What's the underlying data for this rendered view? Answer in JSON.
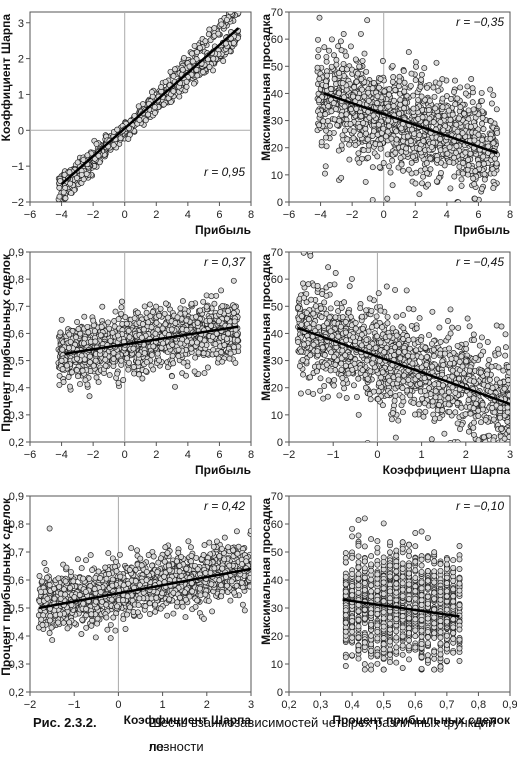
{
  "caption": {
    "label": "Рис. 2.3.2.",
    "text": "Шесть взаимозависимостей четырех различных функций по-",
    "text_cont": "лезности"
  },
  "chart_data": [
    {
      "type": "scatter",
      "id": "p1",
      "xlabel": "Прибыль",
      "ylabel": "Коэффициент Шарпа",
      "xlim": [
        -6,
        8
      ],
      "ylim": [
        -2,
        3.3
      ],
      "xticks": [
        -6,
        -4,
        -2,
        0,
        2,
        4,
        6,
        8
      ],
      "yticks": [
        -2,
        -1,
        0,
        1,
        2,
        3
      ],
      "xtick_labels": [
        "−6",
        "−4",
        "−2",
        "0",
        "2",
        "4",
        "6",
        "8"
      ],
      "ytick_labels": [
        "−2",
        "−1",
        "0",
        "1",
        "2",
        "3"
      ],
      "annotation": "r = 0,95",
      "trend": [
        [
          -4,
          -1.5
        ],
        [
          7.2,
          2.85
        ]
      ],
      "cloud": {
        "shape": "band",
        "x_range": [
          -4.2,
          7.2
        ],
        "slope": 0.4,
        "intercept": 0.0,
        "spread": 0.28,
        "count": 900
      }
    },
    {
      "type": "scatter",
      "id": "p2",
      "xlabel": "Прибыль",
      "ylabel": "Максимальная просадка",
      "xlim": [
        -6,
        8
      ],
      "ylim": [
        0,
        70
      ],
      "xticks": [
        -6,
        -4,
        -2,
        0,
        2,
        4,
        6,
        8
      ],
      "yticks": [
        0,
        10,
        20,
        30,
        40,
        50,
        60,
        70
      ],
      "xtick_labels": [
        "−6",
        "−4",
        "−2",
        "0",
        "2",
        "4",
        "6",
        "8"
      ],
      "ytick_labels": [
        "0",
        "10",
        "20",
        "30",
        "40",
        "50",
        "60",
        "70"
      ],
      "annotation": "r = −0,35",
      "trend": [
        [
          -3.8,
          40
        ],
        [
          7.2,
          18
        ]
      ],
      "cloud": {
        "shape": "band",
        "x_range": [
          -4.2,
          7.2
        ],
        "slope": -2.0,
        "intercept": 32.5,
        "spread": 10,
        "count": 1400
      }
    },
    {
      "type": "scatter",
      "id": "p3",
      "xlabel": "Прибыль",
      "ylabel": "Процент прибыльных сделок",
      "xlim": [
        -6,
        8
      ],
      "ylim": [
        0.2,
        0.9
      ],
      "xticks": [
        -6,
        -4,
        -2,
        0,
        2,
        4,
        6,
        8
      ],
      "yticks": [
        0.2,
        0.3,
        0.4,
        0.5,
        0.6,
        0.7,
        0.8,
        0.9
      ],
      "xtick_labels": [
        "−6",
        "−4",
        "−2",
        "0",
        "2",
        "4",
        "6",
        "8"
      ],
      "ytick_labels": [
        "0,2",
        "0,3",
        "0,4",
        "0,5",
        "0,6",
        "0,7",
        "0,8",
        "0,9"
      ],
      "annotation": "r = 0,37",
      "trend": [
        [
          -3.8,
          0.525
        ],
        [
          7.2,
          0.625
        ]
      ],
      "cloud": {
        "shape": "band",
        "x_range": [
          -4.2,
          7.2
        ],
        "slope": 0.009,
        "intercept": 0.56,
        "spread": 0.055,
        "count": 1400
      }
    },
    {
      "type": "scatter",
      "id": "p4",
      "xlabel": "Коэффициент Шарпа",
      "ylabel": "Максимальная просадка",
      "xlim": [
        -2,
        3
      ],
      "ylim": [
        0,
        70
      ],
      "xticks": [
        -2,
        -1,
        0,
        1,
        2,
        3
      ],
      "yticks": [
        0,
        10,
        20,
        30,
        40,
        50,
        60,
        70
      ],
      "xtick_labels": [
        "−2",
        "−1",
        "0",
        "1",
        "2",
        "3"
      ],
      "ytick_labels": [
        "0",
        "10",
        "20",
        "30",
        "40",
        "50",
        "60",
        "70"
      ],
      "annotation": "r = −0,45",
      "trend": [
        [
          -1.8,
          42
        ],
        [
          3,
          14
        ]
      ],
      "cloud": {
        "shape": "band",
        "x_range": [
          -1.8,
          3.0
        ],
        "slope": -5.8,
        "intercept": 31.5,
        "spread": 10,
        "count": 1400
      }
    },
    {
      "type": "scatter",
      "id": "p5",
      "xlabel": "Коэффициент Шарпа",
      "ylabel": "Процент прибыльных сделок",
      "xlim": [
        -2,
        3
      ],
      "ylim": [
        0.2,
        0.9
      ],
      "xticks": [
        -2,
        -1,
        0,
        1,
        2,
        3
      ],
      "yticks": [
        0.2,
        0.3,
        0.4,
        0.5,
        0.6,
        0.7,
        0.8,
        0.9
      ],
      "xtick_labels": [
        "−2",
        "−1",
        "0",
        "1",
        "2",
        "3"
      ],
      "ytick_labels": [
        "0,2",
        "0,3",
        "0,4",
        "0,5",
        "0,6",
        "0,7",
        "0,8",
        "0,9"
      ],
      "annotation": "r = 0,42",
      "trend": [
        [
          -1.8,
          0.5
        ],
        [
          3,
          0.64
        ]
      ],
      "cloud": {
        "shape": "band",
        "x_range": [
          -1.8,
          3.0
        ],
        "slope": 0.028,
        "intercept": 0.56,
        "spread": 0.055,
        "count": 1400
      }
    },
    {
      "type": "scatter",
      "id": "p6",
      "xlabel": "Процент прибыльных сделок",
      "ylabel": "Максимальная просадка",
      "xlim": [
        0.2,
        0.9
      ],
      "ylim": [
        0,
        70
      ],
      "xticks": [
        0.2,
        0.3,
        0.4,
        0.5,
        0.6,
        0.7,
        0.8,
        0.9
      ],
      "yticks": [
        0,
        10,
        20,
        30,
        40,
        50,
        60,
        70
      ],
      "xtick_labels": [
        "0,2",
        "0,3",
        "0,4",
        "0,5",
        "0,6",
        "0,7",
        "0,8",
        "0,9"
      ],
      "ytick_labels": [
        "0",
        "10",
        "20",
        "30",
        "40",
        "50",
        "60",
        "70"
      ],
      "annotation": "r = −0,10",
      "trend": [
        [
          0.37,
          33
        ],
        [
          0.74,
          27
        ]
      ],
      "cloud": {
        "shape": "box",
        "x_range": [
          0.38,
          0.74
        ],
        "y_center": 30.5,
        "spread": 11,
        "count": 1400
      }
    }
  ]
}
